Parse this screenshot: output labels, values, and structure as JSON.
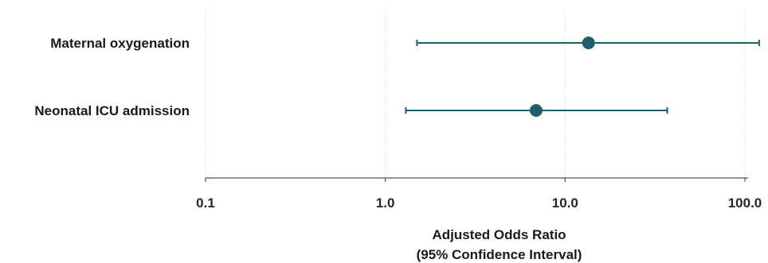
{
  "chart_data": {
    "type": "forest",
    "xscale": "log",
    "xlim": [
      0.1,
      100
    ],
    "xticks": [
      0.1,
      1.0,
      10.0,
      100.0
    ],
    "xtick_labels": [
      "0.1",
      "1.0",
      "10.0",
      "100.0"
    ],
    "xlabel_line1": "Adjusted Odds Ratio",
    "xlabel_line2": "(95% Confidence Interval)",
    "grid": "vertical",
    "marker_color": "#1f5f6b",
    "rows": [
      {
        "label": "Maternal oxygenation",
        "estimate": 13.5,
        "ci_low": 1.5,
        "ci_high": 120
      },
      {
        "label": "Neonatal ICU admission",
        "estimate": 6.9,
        "ci_low": 1.3,
        "ci_high": 37
      }
    ]
  }
}
